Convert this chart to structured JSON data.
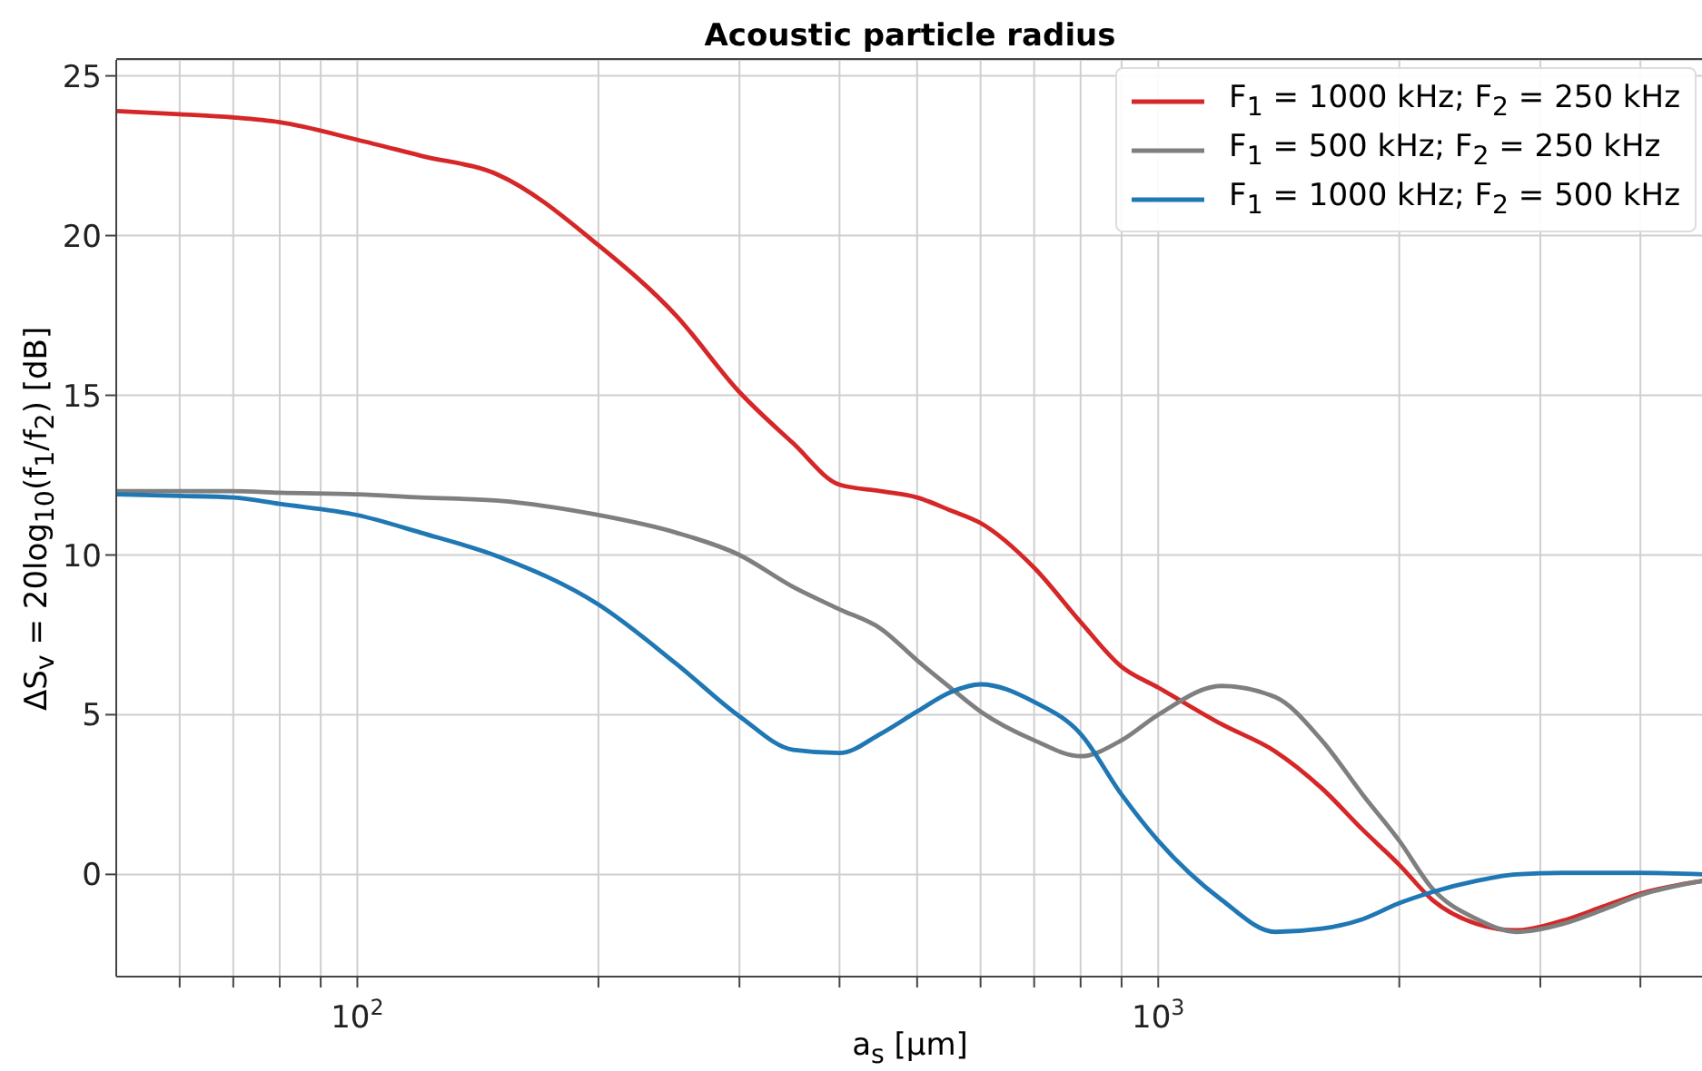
{
  "chart_data": {
    "type": "line",
    "title": "Acoustic particle radius",
    "xlabel": "a$_{s}$ [μm]",
    "ylabel": "ΔS$_{v}$ = 20log$_{10}$(f$_{1}$/f$_{2}$) [dB]",
    "log": "x",
    "grid": true,
    "legend": "top right",
    "line_style": "solid",
    "marker": "none",
    "xlim": [
      50,
      4800
    ],
    "ylim": [
      -3.2,
      25.5
    ],
    "xticks": [
      {
        "value": 60,
        "label": null
      },
      {
        "value": 70,
        "label": null
      },
      {
        "value": 80,
        "label": null
      },
      {
        "value": 90,
        "label": null
      },
      {
        "value": 100,
        "label": "10$^{2}$"
      },
      {
        "value": 200,
        "label": null
      },
      {
        "value": 300,
        "label": null
      },
      {
        "value": 400,
        "label": null
      },
      {
        "value": 500,
        "label": null
      },
      {
        "value": 600,
        "label": null
      },
      {
        "value": 700,
        "label": null
      },
      {
        "value": 800,
        "label": null
      },
      {
        "value": 900,
        "label": null
      },
      {
        "value": 1000,
        "label": "10$^{3}$"
      },
      {
        "value": 2000,
        "label": null
      },
      {
        "value": 3000,
        "label": null
      },
      {
        "value": 4000,
        "label": null
      }
    ],
    "yticks": [
      0,
      5,
      10,
      15,
      20,
      25
    ],
    "x": [
      50,
      60,
      70,
      80,
      100,
      120,
      150,
      200,
      250,
      300,
      350,
      400,
      450,
      500,
      550,
      600,
      700,
      800,
      900,
      1000,
      1200,
      1400,
      1600,
      1800,
      2000,
      2200,
      2500,
      2800,
      3200,
      3600,
      4000,
      4800
    ],
    "series": [
      {
        "name": "F$_{1}$ = 1000 kHz; F$_{2}$ = 250 kHz",
        "color": "#d62728",
        "values": [
          23.9,
          23.8,
          23.7,
          23.55,
          23.0,
          22.5,
          21.9,
          19.7,
          17.5,
          15.1,
          13.5,
          12.2,
          12.0,
          11.8,
          11.4,
          11.0,
          9.6,
          7.9,
          6.5,
          5.85,
          4.7,
          3.85,
          2.7,
          1.4,
          0.3,
          -0.8,
          -1.55,
          -1.75,
          -1.45,
          -1.0,
          -0.6,
          -0.2
        ]
      },
      {
        "name": "F$_{1}$ = 500 kHz; F$_{2}$ = 250 kHz",
        "color": "#7f7f7f",
        "values": [
          12.0,
          12.0,
          12.0,
          11.95,
          11.9,
          11.8,
          11.7,
          11.25,
          10.7,
          10.0,
          9.0,
          8.3,
          7.7,
          6.7,
          5.85,
          5.1,
          4.2,
          3.7,
          4.2,
          5.0,
          5.9,
          5.55,
          4.2,
          2.5,
          1.05,
          -0.45,
          -1.4,
          -1.8,
          -1.55,
          -1.1,
          -0.65,
          -0.2
        ]
      },
      {
        "name": "F$_{1}$ = 1000 kHz; F$_{2}$ = 500 kHz",
        "color": "#1f77b4",
        "values": [
          11.9,
          11.85,
          11.8,
          11.6,
          11.25,
          10.7,
          9.95,
          8.45,
          6.6,
          4.95,
          3.9,
          3.8,
          4.4,
          5.1,
          5.7,
          5.95,
          5.4,
          4.4,
          2.5,
          1.05,
          -0.8,
          -1.8,
          -1.7,
          -1.4,
          -0.9,
          -0.55,
          -0.2,
          0.0,
          0.05,
          0.05,
          0.05,
          0.0
        ]
      }
    ]
  }
}
